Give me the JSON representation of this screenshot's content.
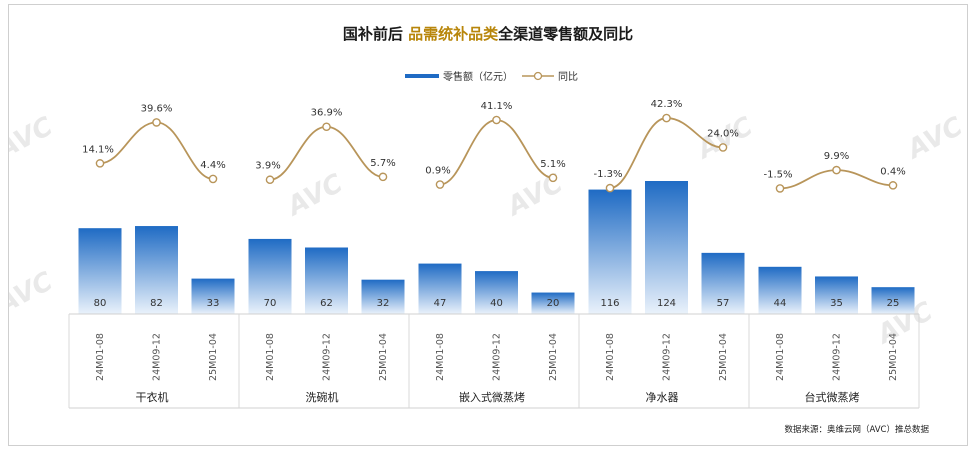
{
  "title": {
    "prefix": "国补前后 ",
    "accent": "品需统补品类",
    "suffix": "全渠道零售额及同比"
  },
  "legend": {
    "bar": "零售额（亿元）",
    "line": "同比"
  },
  "watermark": "AVC",
  "source": "数据来源：奥维云网（AVC）推总数据",
  "colors": {
    "bar_top": "#1f6bc4",
    "bar_bottom": "#eaf2fb",
    "line": "#b8955a",
    "accent": "#b8860b"
  },
  "chart_data": {
    "type": "bar",
    "title": "国补前后 品需统补品类全渠道零售额及同比",
    "groups": [
      "干衣机",
      "洗碗机",
      "嵌入式微蒸烤",
      "净水器",
      "台式微蒸烤"
    ],
    "periods": [
      "24M01-08",
      "24M09-12",
      "25M01-04"
    ],
    "series": [
      {
        "name": "零售额（亿元）",
        "type": "bar",
        "values": [
          [
            80,
            82,
            33
          ],
          [
            70,
            62,
            32
          ],
          [
            47,
            40,
            20
          ],
          [
            116,
            124,
            57
          ],
          [
            44,
            35,
            25
          ]
        ]
      },
      {
        "name": "同比",
        "type": "line",
        "values": [
          [
            14.1,
            39.6,
            4.4
          ],
          [
            3.9,
            36.9,
            5.7
          ],
          [
            0.9,
            41.1,
            5.1
          ],
          [
            -1.3,
            42.3,
            24.0
          ],
          [
            -1.5,
            9.9,
            0.4
          ]
        ],
        "labels": [
          [
            "14.1%",
            "39.6%",
            "4.4%"
          ],
          [
            "3.9%",
            "36.9%",
            "5.7%"
          ],
          [
            "0.9%",
            "41.1%",
            "5.1%"
          ],
          [
            "-1.3%",
            "42.3%",
            "24.0%"
          ],
          [
            "-1.5%",
            "9.9%",
            "0.4%"
          ]
        ]
      }
    ],
    "ylim": [
      0,
      130
    ],
    "y2lim": [
      -5,
      45
    ]
  }
}
